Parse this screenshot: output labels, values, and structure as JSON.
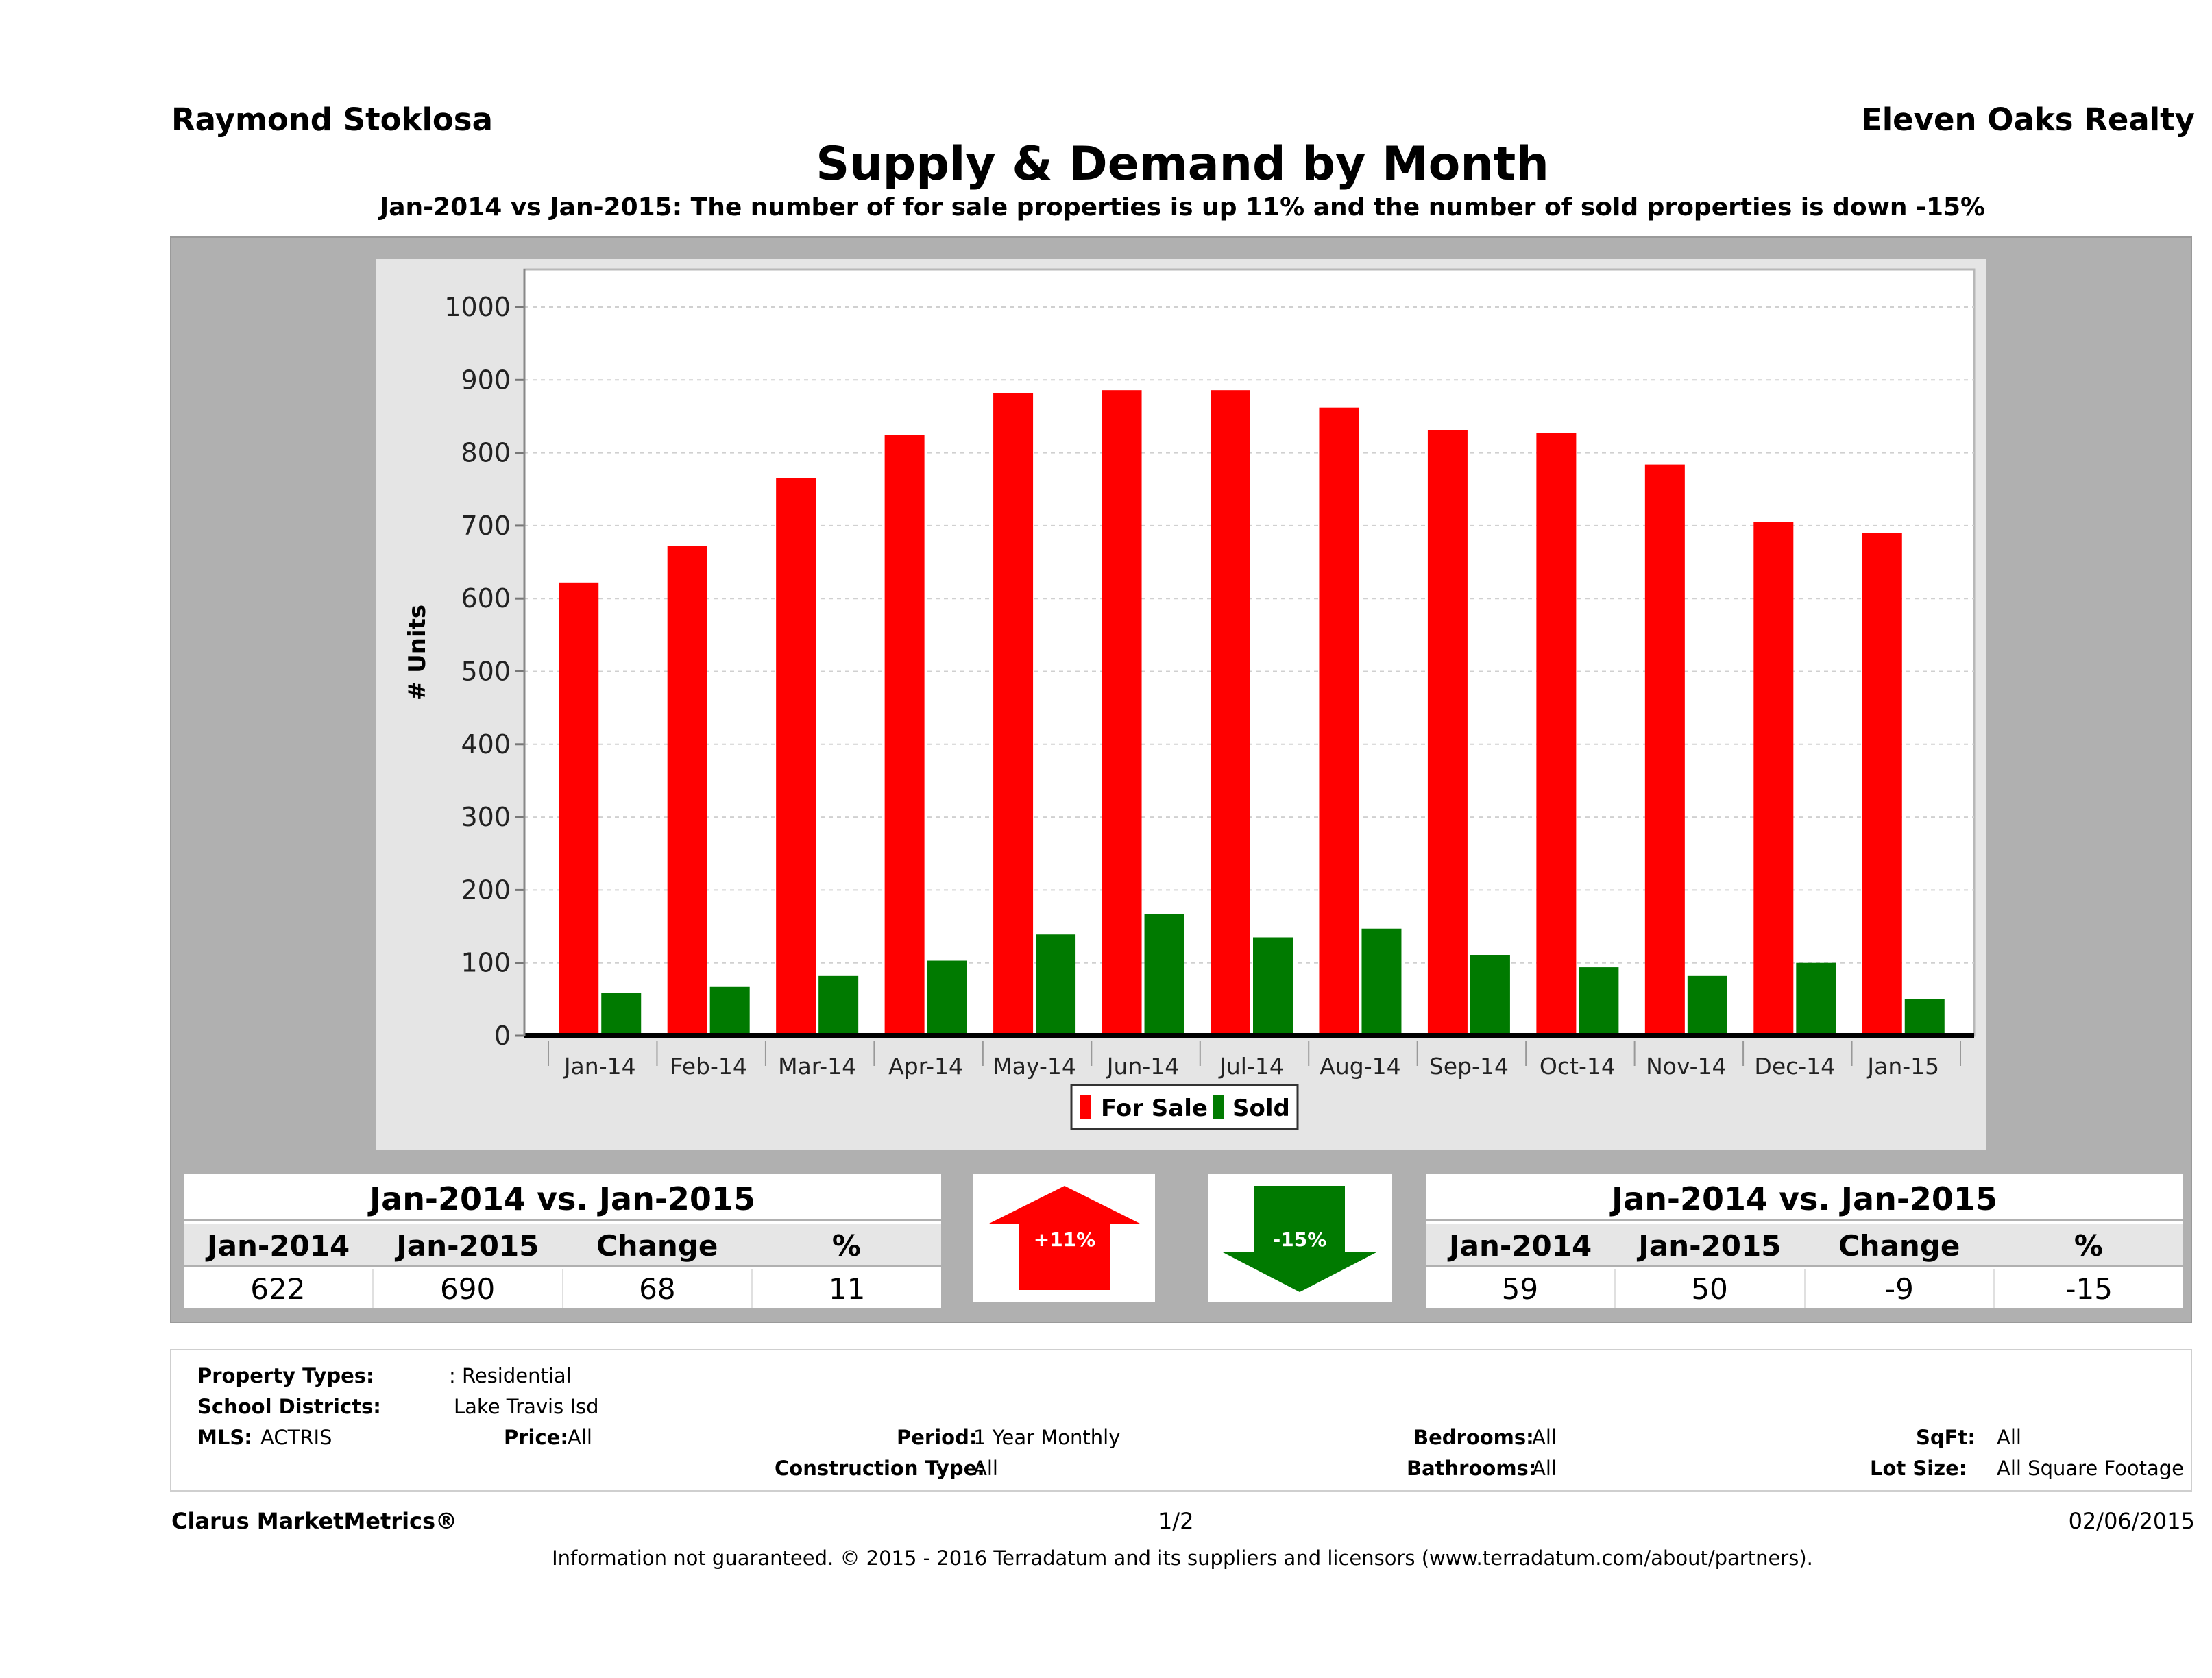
{
  "header": {
    "agent": "Raymond Stoklosa",
    "company": "Eleven Oaks Realty",
    "title": "Supply & Demand by Month",
    "subtitle": "Jan-2014 vs Jan-2015: The number of for sale properties is up 11% and the number of sold properties is down -15%"
  },
  "chart_data": {
    "type": "bar",
    "categories": [
      "Jan-14",
      "Feb-14",
      "Mar-14",
      "Apr-14",
      "May-14",
      "Jun-14",
      "Jul-14",
      "Aug-14",
      "Sep-14",
      "Oct-14",
      "Nov-14",
      "Dec-14",
      "Jan-15"
    ],
    "series": [
      {
        "name": "For Sale",
        "color": "#ff0000",
        "values": [
          622,
          672,
          765,
          825,
          882,
          886,
          886,
          862,
          831,
          827,
          784,
          705,
          690
        ]
      },
      {
        "name": "Sold",
        "color": "#007a00",
        "values": [
          59,
          67,
          82,
          103,
          139,
          167,
          135,
          147,
          111,
          94,
          82,
          100,
          50
        ]
      }
    ],
    "ylabel": "# Units",
    "xlabel": "",
    "ylim": [
      0,
      1000
    ],
    "yticks": [
      "0",
      "100",
      "200",
      "300",
      "400",
      "500",
      "600",
      "700",
      "800",
      "900",
      "1000"
    ],
    "grid": true,
    "legend": "bottom-center"
  },
  "for_sale_summary": {
    "heading": "Jan-2014 vs. Jan-2015",
    "columns": [
      "Jan-2014",
      "Jan-2015",
      "Change",
      "%"
    ],
    "values": [
      "622",
      "690",
      "68",
      "11"
    ],
    "badge": "+11%",
    "badge_color": "#ff0000"
  },
  "sold_summary": {
    "heading": "Jan-2014 vs. Jan-2015",
    "columns": [
      "Jan-2014",
      "Jan-2015",
      "Change",
      "%"
    ],
    "values": [
      "59",
      "50",
      "-9",
      "-15"
    ],
    "badge": "-15%",
    "badge_color": "#007a00"
  },
  "filters": {
    "property_types_label": "Property Types:",
    "property_types_value": ": Residential",
    "school_districts_label": "School Districts:",
    "school_districts_value": "Lake Travis Isd",
    "mls_label": "MLS:",
    "mls_value": "ACTRIS",
    "price_label": "Price:",
    "price_value": "All",
    "period_label": "Period:",
    "period_value": "1 Year Monthly",
    "construction_label": "Construction Type:",
    "construction_value": "All",
    "bedrooms_label": "Bedrooms:",
    "bedrooms_value": "All",
    "bathrooms_label": "Bathrooms:",
    "bathrooms_value": "All",
    "sqft_label": "SqFt:",
    "sqft_value": "All",
    "lot_size_label": "Lot Size:",
    "lot_size_value": "All Square Footage"
  },
  "footer": {
    "brand": "Clarus MarketMetrics®",
    "page": "1/2",
    "date": "02/06/2015",
    "disclaimer": "Information not guaranteed. © 2015 - 2016 Terradatum and its suppliers and licensors (www.terradatum.com/about/partners)."
  }
}
